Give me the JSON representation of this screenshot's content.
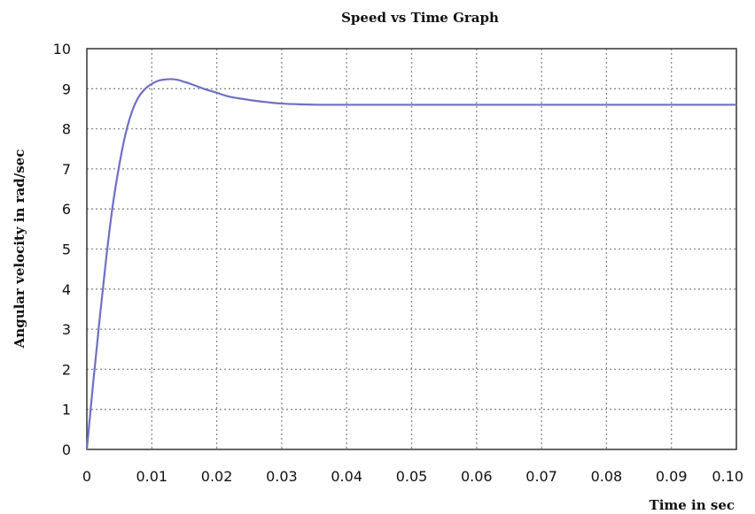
{
  "chart_data": {
    "type": "line",
    "title": "Speed vs Time Graph",
    "xlabel": "Time in sec",
    "ylabel": "Angular velocity in rad/sec",
    "xlim": [
      0,
      0.1
    ],
    "ylim": [
      0,
      10
    ],
    "x_ticks": [
      "0",
      "0.01",
      "0.02",
      "0.03",
      "0.04",
      "0.05",
      "0.06",
      "0.07",
      "0.08",
      "0.09",
      "0.10"
    ],
    "y_ticks": [
      "0",
      "1",
      "2",
      "3",
      "4",
      "5",
      "6",
      "7",
      "8",
      "9",
      "10"
    ],
    "grid": true,
    "colors": {
      "series": "#6f6fc4",
      "grid": "#8a8a8a",
      "frame": "#333333"
    },
    "series": [
      {
        "x": [
          0,
          0.001,
          0.002,
          0.003,
          0.004,
          0.005,
          0.006,
          0.007,
          0.008,
          0.009,
          0.01,
          0.011,
          0.012,
          0.013,
          0.014,
          0.015,
          0.016,
          0.018,
          0.02,
          0.022,
          0.025,
          0.028,
          0.03,
          0.033,
          0.036,
          0.04,
          0.05,
          0.06,
          0.07,
          0.08,
          0.09,
          0.1
        ],
        "y": [
          0,
          1.7,
          3.3,
          4.8,
          6.1,
          7.1,
          7.9,
          8.45,
          8.8,
          9.0,
          9.12,
          9.2,
          9.23,
          9.24,
          9.22,
          9.17,
          9.12,
          9.0,
          8.9,
          8.8,
          8.72,
          8.66,
          8.63,
          8.61,
          8.6,
          8.6,
          8.6,
          8.6,
          8.6,
          8.6,
          8.6,
          8.6
        ]
      }
    ]
  }
}
